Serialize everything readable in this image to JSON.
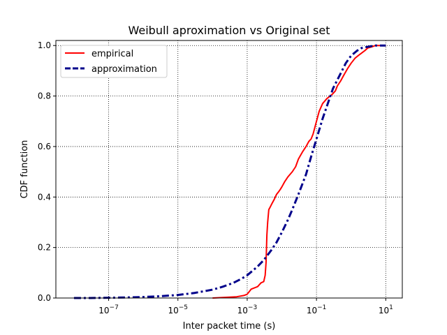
{
  "chart_data": {
    "type": "line",
    "title": "Weibull aproximation vs Original set",
    "xlabel": "Inter packet time (s)",
    "ylabel": "CDF function",
    "xscale": "log",
    "xlim": [
      3e-09,
      30
    ],
    "ylim": [
      0,
      1.02
    ],
    "x_ticks": [
      {
        "value": 1e-07,
        "base": "10",
        "exp": "−7"
      },
      {
        "value": 1e-05,
        "base": "10",
        "exp": "−5"
      },
      {
        "value": 0.001,
        "base": "10",
        "exp": "−3"
      },
      {
        "value": 0.1,
        "base": "10",
        "exp": "−1"
      },
      {
        "value": 10,
        "base": "10",
        "exp": "1"
      }
    ],
    "y_ticks": [
      {
        "value": 0.0,
        "label": "0.0"
      },
      {
        "value": 0.2,
        "label": "0.2"
      },
      {
        "value": 0.4,
        "label": "0.4"
      },
      {
        "value": 0.6,
        "label": "0.6"
      },
      {
        "value": 0.8,
        "label": "0.8"
      },
      {
        "value": 1.0,
        "label": "1.0"
      }
    ],
    "grid": true,
    "legend_position": "top-left",
    "series": [
      {
        "name": "empirical",
        "color": "#ff0000",
        "style": "solid",
        "x": [
          0.0001,
          0.0002,
          0.0005,
          0.0008,
          0.001,
          0.0013,
          0.0016,
          0.002,
          0.0025,
          0.003,
          0.0033,
          0.0035,
          0.0037,
          0.0039,
          0.0042,
          0.0046,
          0.005,
          0.006,
          0.007,
          0.008,
          0.009,
          0.01,
          0.012,
          0.015,
          0.02,
          0.025,
          0.03,
          0.04,
          0.05,
          0.06,
          0.07,
          0.08,
          0.1,
          0.12,
          0.15,
          0.2,
          0.25,
          0.3,
          0.35,
          0.4,
          0.5,
          0.6,
          0.8,
          1.0,
          1.3,
          1.6,
          2,
          2.5,
          3,
          4,
          5,
          6,
          8,
          10
        ],
        "y": [
          0.0,
          0.002,
          0.005,
          0.01,
          0.015,
          0.035,
          0.04,
          0.045,
          0.06,
          0.065,
          0.09,
          0.14,
          0.25,
          0.3,
          0.35,
          0.36,
          0.37,
          0.39,
          0.41,
          0.42,
          0.43,
          0.44,
          0.46,
          0.48,
          0.5,
          0.52,
          0.55,
          0.58,
          0.6,
          0.62,
          0.63,
          0.65,
          0.7,
          0.74,
          0.77,
          0.79,
          0.8,
          0.81,
          0.82,
          0.84,
          0.86,
          0.88,
          0.91,
          0.93,
          0.95,
          0.96,
          0.97,
          0.98,
          0.99,
          0.995,
          1.0,
          1.0,
          1.0,
          1.0
        ]
      },
      {
        "name": "approximation",
        "color": "#00008b",
        "style": "dashdot",
        "x": [
          1e-08,
          3e-08,
          1e-07,
          3e-07,
          1e-06,
          3e-06,
          1e-05,
          3e-05,
          0.0001,
          0.0002,
          0.0004,
          0.0007,
          0.001,
          0.002,
          0.003,
          0.005,
          0.007,
          0.01,
          0.015,
          0.02,
          0.03,
          0.05,
          0.07,
          0.1,
          0.15,
          0.2,
          0.3,
          0.5,
          0.7,
          1.0,
          1.5,
          2,
          3,
          5,
          7,
          10
        ],
        "y": [
          0.0,
          0.0,
          0.001,
          0.002,
          0.004,
          0.007,
          0.012,
          0.02,
          0.033,
          0.045,
          0.06,
          0.077,
          0.09,
          0.125,
          0.15,
          0.19,
          0.22,
          0.26,
          0.31,
          0.35,
          0.41,
          0.49,
          0.56,
          0.63,
          0.71,
          0.76,
          0.83,
          0.89,
          0.93,
          0.96,
          0.98,
          0.99,
          0.995,
          1.0,
          1.0,
          1.0
        ]
      }
    ]
  }
}
